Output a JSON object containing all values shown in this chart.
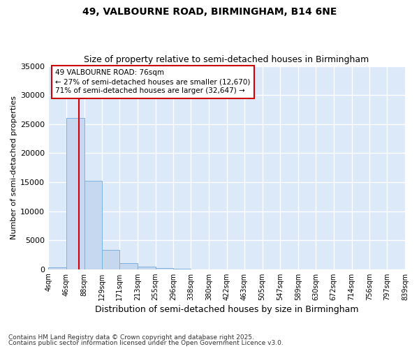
{
  "title1": "49, VALBOURNE ROAD, BIRMINGHAM, B14 6NE",
  "title2": "Size of property relative to semi-detached houses in Birmingham",
  "xlabel": "Distribution of semi-detached houses by size in Birmingham",
  "ylabel": "Number of semi-detached properties",
  "footnote1": "Contains HM Land Registry data © Crown copyright and database right 2025.",
  "footnote2": "Contains public sector information licensed under the Open Government Licence v3.0.",
  "annotation_title": "49 VALBOURNE ROAD: 76sqm",
  "annotation_line1": "← 27% of semi-detached houses are smaller (12,670)",
  "annotation_line2": "71% of semi-detached houses are larger (32,647) →",
  "property_size": 76,
  "bar_edges": [
    4,
    46,
    88,
    129,
    171,
    213,
    255,
    296,
    338,
    380,
    422,
    463,
    505,
    547,
    589,
    630,
    672,
    714,
    756,
    797,
    839
  ],
  "bar_heights": [
    350,
    26100,
    15200,
    3300,
    1050,
    450,
    200,
    50,
    0,
    0,
    0,
    0,
    0,
    0,
    0,
    0,
    0,
    0,
    0,
    0
  ],
  "bar_color": "#c5d8f0",
  "bar_edge_color": "#7fb0dc",
  "vline_color": "#cc0000",
  "vline_x": 76,
  "ylim": [
    0,
    35000
  ],
  "yticks": [
    0,
    5000,
    10000,
    15000,
    20000,
    25000,
    30000,
    35000
  ],
  "bg_color": "#dce9f8",
  "fig_bg_color": "#ffffff",
  "grid_color": "#ffffff",
  "annotation_box_color": "#ffffff",
  "annotation_box_edge": "#cc0000",
  "x_tick_labels": [
    "4sqm",
    "46sqm",
    "88sqm",
    "129sqm",
    "171sqm",
    "213sqm",
    "255sqm",
    "296sqm",
    "338sqm",
    "380sqm",
    "422sqm",
    "463sqm",
    "505sqm",
    "547sqm",
    "589sqm",
    "630sqm",
    "672sqm",
    "714sqm",
    "756sqm",
    "797sqm",
    "839sqm"
  ]
}
